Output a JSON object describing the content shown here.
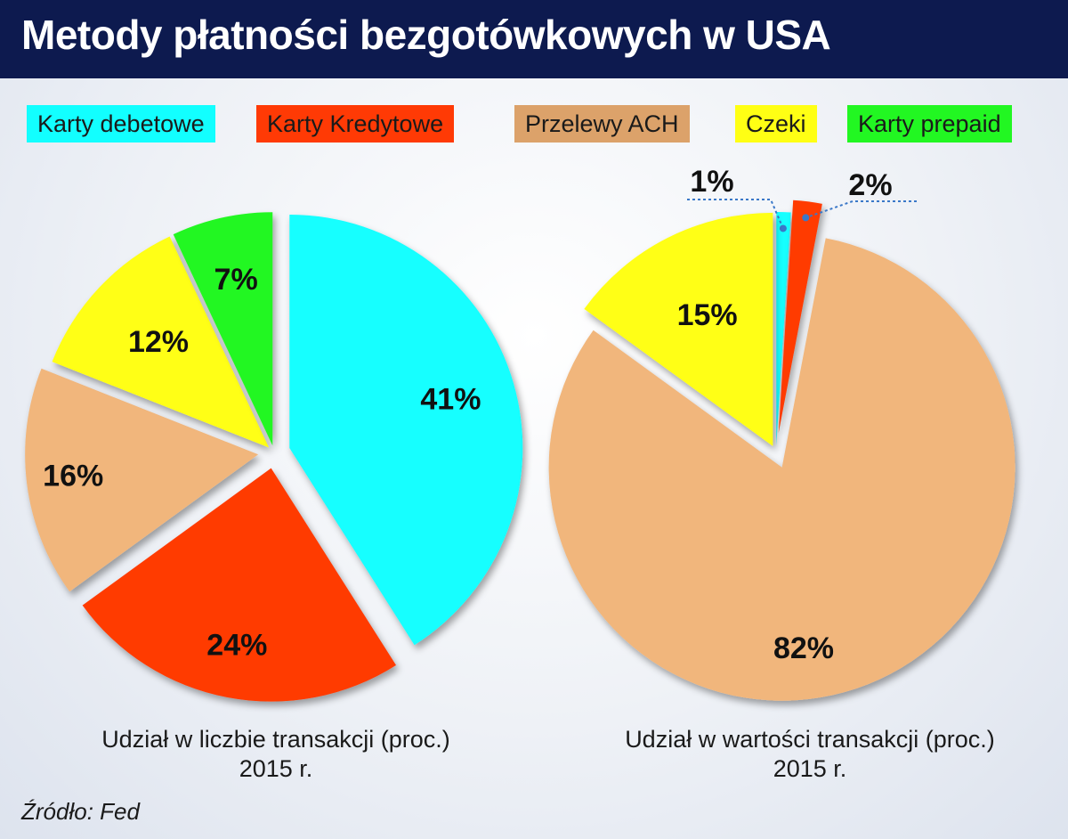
{
  "title": "Metody płatności bezgotówkowych w USA",
  "source": "Źródło: Fed",
  "colors": {
    "header_bg": "#0d1a4f",
    "debit": "#12ffff",
    "credit": "#ff3a05",
    "ach": "#f1b67c",
    "checks": "#ffff14",
    "prepaid": "#22f722"
  },
  "legend": [
    {
      "label": "Karty debetowe",
      "color": "#12ffff"
    },
    {
      "label": "Karty Kredytowe",
      "color": "#ff3a05"
    },
    {
      "label": "Przelewy ACH",
      "color": "#dca26a"
    },
    {
      "label": "Czeki",
      "color": "#ffff14"
    },
    {
      "label": "Karty prepaid",
      "color": "#22f722"
    }
  ],
  "chart_data": [
    {
      "type": "pie",
      "title": "Udział w liczbie transakcji (proc.)",
      "subtitle": "2015 r.",
      "categories": [
        "Karty debetowe",
        "Karty Kredytowe",
        "Przelewy ACH",
        "Czeki",
        "Karty prepaid"
      ],
      "values": [
        41,
        24,
        16,
        12,
        7
      ],
      "labels": [
        "41%",
        "24%",
        "16%",
        "12%",
        "7%"
      ]
    },
    {
      "type": "pie",
      "title": "Udział w wartości transakcji (proc.)",
      "subtitle": "2015 r.",
      "categories": [
        "Karty debetowe",
        "Karty Kredytowe",
        "Przelewy ACH",
        "Czeki"
      ],
      "values": [
        1,
        2,
        82,
        15
      ],
      "labels": [
        "1%",
        "2%",
        "82%",
        "15%"
      ]
    }
  ]
}
